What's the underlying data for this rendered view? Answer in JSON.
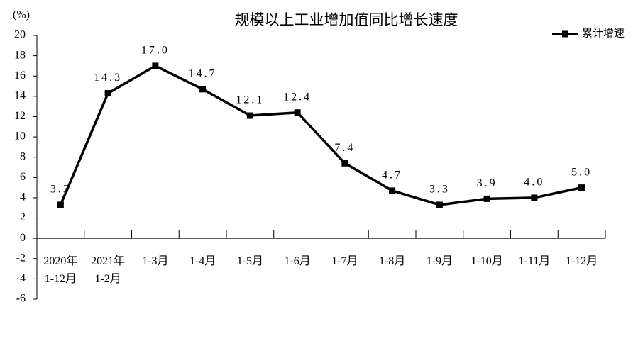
{
  "chart_data": {
    "type": "line",
    "title": "规模以上工业增加值同比增长速度",
    "y_label": "(%)",
    "categories": [
      "2020年\n1-12月",
      "2021年\n1-2月",
      "1-3月",
      "1-4月",
      "1-5月",
      "1-6月",
      "1-7月",
      "1-8月",
      "1-9月",
      "1-10月",
      "1-11月",
      "1-12月"
    ],
    "series": [
      {
        "name": "累计增速",
        "color": "#000000",
        "values": [
          3.3,
          14.3,
          17.0,
          14.7,
          12.1,
          12.4,
          7.4,
          4.7,
          3.3,
          3.9,
          4.0,
          5.0
        ],
        "value_labels": [
          "3.3",
          "14.3",
          "17.0",
          "14.7",
          "12.1",
          "12.4",
          "7.4",
          "4.7",
          "3.3",
          "3.9",
          "4.0",
          "5.0"
        ]
      }
    ],
    "ylim": [
      -6,
      20
    ],
    "yticks": [
      -6,
      -4,
      -2,
      0,
      2,
      4,
      6,
      8,
      10,
      12,
      14,
      16,
      18,
      20
    ],
    "grid": false,
    "legend": "top-right"
  }
}
